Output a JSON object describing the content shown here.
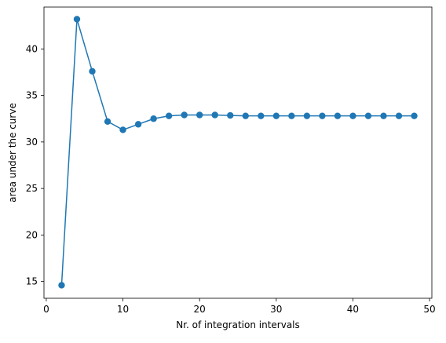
{
  "chart_data": {
    "type": "line",
    "title": "",
    "xlabel": "Nr. of integration intervals",
    "ylabel": "area under the curve",
    "xlim": [
      -0.3,
      50.3
    ],
    "ylim": [
      13.2,
      44.5
    ],
    "xticks": [
      0,
      10,
      20,
      30,
      40,
      50
    ],
    "yticks": [
      15,
      20,
      25,
      30,
      35,
      40
    ],
    "grid": false,
    "legend": "none",
    "series": [
      {
        "color": "#1f77b4",
        "marker": "circle",
        "x": [
          2,
          4,
          6,
          8,
          10,
          12,
          14,
          16,
          18,
          20,
          22,
          24,
          26,
          28,
          30,
          32,
          34,
          36,
          38,
          40,
          42,
          44,
          46,
          48
        ],
        "y": [
          14.6,
          43.2,
          37.6,
          32.2,
          31.3,
          31.9,
          32.5,
          32.8,
          32.9,
          32.9,
          32.9,
          32.85,
          32.8,
          32.8,
          32.8,
          32.8,
          32.8,
          32.8,
          32.8,
          32.8,
          32.8,
          32.8,
          32.8,
          32.8
        ]
      }
    ]
  }
}
